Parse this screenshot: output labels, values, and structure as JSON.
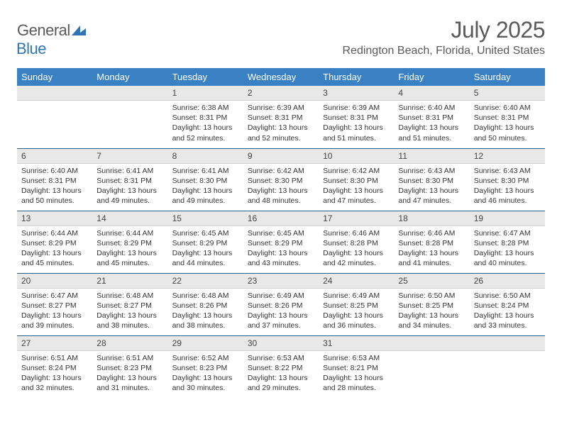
{
  "logo": {
    "general": "General",
    "blue": "Blue",
    "icon_color": "#2f75b5"
  },
  "title": "July 2025",
  "location": "Redington Beach, Florida, United States",
  "colors": {
    "header_bg": "#3a81c4",
    "header_text": "#ffffff",
    "daynum_bg": "#e8e8e8",
    "row_border": "#2f5f8a",
    "text": "#333333",
    "title_text": "#5a5a5a"
  },
  "weekdays": [
    "Sunday",
    "Monday",
    "Tuesday",
    "Wednesday",
    "Thursday",
    "Friday",
    "Saturday"
  ],
  "weeks": [
    [
      null,
      null,
      {
        "n": "1",
        "sr": "6:38 AM",
        "ss": "8:31 PM",
        "dl": "13 hours and 52 minutes."
      },
      {
        "n": "2",
        "sr": "6:39 AM",
        "ss": "8:31 PM",
        "dl": "13 hours and 52 minutes."
      },
      {
        "n": "3",
        "sr": "6:39 AM",
        "ss": "8:31 PM",
        "dl": "13 hours and 51 minutes."
      },
      {
        "n": "4",
        "sr": "6:40 AM",
        "ss": "8:31 PM",
        "dl": "13 hours and 51 minutes."
      },
      {
        "n": "5",
        "sr": "6:40 AM",
        "ss": "8:31 PM",
        "dl": "13 hours and 50 minutes."
      }
    ],
    [
      {
        "n": "6",
        "sr": "6:40 AM",
        "ss": "8:31 PM",
        "dl": "13 hours and 50 minutes."
      },
      {
        "n": "7",
        "sr": "6:41 AM",
        "ss": "8:31 PM",
        "dl": "13 hours and 49 minutes."
      },
      {
        "n": "8",
        "sr": "6:41 AM",
        "ss": "8:30 PM",
        "dl": "13 hours and 49 minutes."
      },
      {
        "n": "9",
        "sr": "6:42 AM",
        "ss": "8:30 PM",
        "dl": "13 hours and 48 minutes."
      },
      {
        "n": "10",
        "sr": "6:42 AM",
        "ss": "8:30 PM",
        "dl": "13 hours and 47 minutes."
      },
      {
        "n": "11",
        "sr": "6:43 AM",
        "ss": "8:30 PM",
        "dl": "13 hours and 47 minutes."
      },
      {
        "n": "12",
        "sr": "6:43 AM",
        "ss": "8:30 PM",
        "dl": "13 hours and 46 minutes."
      }
    ],
    [
      {
        "n": "13",
        "sr": "6:44 AM",
        "ss": "8:29 PM",
        "dl": "13 hours and 45 minutes."
      },
      {
        "n": "14",
        "sr": "6:44 AM",
        "ss": "8:29 PM",
        "dl": "13 hours and 45 minutes."
      },
      {
        "n": "15",
        "sr": "6:45 AM",
        "ss": "8:29 PM",
        "dl": "13 hours and 44 minutes."
      },
      {
        "n": "16",
        "sr": "6:45 AM",
        "ss": "8:29 PM",
        "dl": "13 hours and 43 minutes."
      },
      {
        "n": "17",
        "sr": "6:46 AM",
        "ss": "8:28 PM",
        "dl": "13 hours and 42 minutes."
      },
      {
        "n": "18",
        "sr": "6:46 AM",
        "ss": "8:28 PM",
        "dl": "13 hours and 41 minutes."
      },
      {
        "n": "19",
        "sr": "6:47 AM",
        "ss": "8:28 PM",
        "dl": "13 hours and 40 minutes."
      }
    ],
    [
      {
        "n": "20",
        "sr": "6:47 AM",
        "ss": "8:27 PM",
        "dl": "13 hours and 39 minutes."
      },
      {
        "n": "21",
        "sr": "6:48 AM",
        "ss": "8:27 PM",
        "dl": "13 hours and 38 minutes."
      },
      {
        "n": "22",
        "sr": "6:48 AM",
        "ss": "8:26 PM",
        "dl": "13 hours and 38 minutes."
      },
      {
        "n": "23",
        "sr": "6:49 AM",
        "ss": "8:26 PM",
        "dl": "13 hours and 37 minutes."
      },
      {
        "n": "24",
        "sr": "6:49 AM",
        "ss": "8:25 PM",
        "dl": "13 hours and 36 minutes."
      },
      {
        "n": "25",
        "sr": "6:50 AM",
        "ss": "8:25 PM",
        "dl": "13 hours and 34 minutes."
      },
      {
        "n": "26",
        "sr": "6:50 AM",
        "ss": "8:24 PM",
        "dl": "13 hours and 33 minutes."
      }
    ],
    [
      {
        "n": "27",
        "sr": "6:51 AM",
        "ss": "8:24 PM",
        "dl": "13 hours and 32 minutes."
      },
      {
        "n": "28",
        "sr": "6:51 AM",
        "ss": "8:23 PM",
        "dl": "13 hours and 31 minutes."
      },
      {
        "n": "29",
        "sr": "6:52 AM",
        "ss": "8:23 PM",
        "dl": "13 hours and 30 minutes."
      },
      {
        "n": "30",
        "sr": "6:53 AM",
        "ss": "8:22 PM",
        "dl": "13 hours and 29 minutes."
      },
      {
        "n": "31",
        "sr": "6:53 AM",
        "ss": "8:21 PM",
        "dl": "13 hours and 28 minutes."
      },
      null,
      null
    ]
  ],
  "labels": {
    "sunrise": "Sunrise:",
    "sunset": "Sunset:",
    "daylight": "Daylight:"
  }
}
